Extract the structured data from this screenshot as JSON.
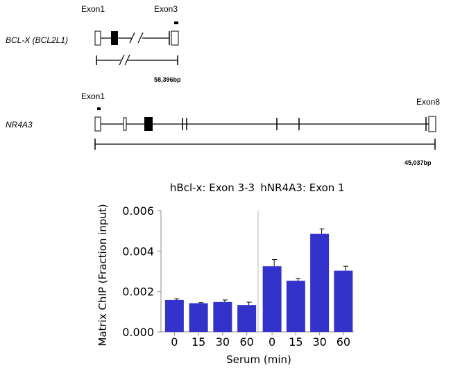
{
  "gene_maps": {
    "bclx": {
      "name": "BCL-X (BCL2L1)",
      "exon_start_label": "Exon1",
      "exon_end_label": "Exon3",
      "length_label": "58,396bp"
    },
    "nr4a3": {
      "name": "NR4A3",
      "exon_start_label": "Exon1",
      "exon_end_label": "Exon8",
      "length_label": "45,037bp"
    }
  },
  "chart_data": {
    "type": "bar",
    "ylabel": "Matrix ChIP (Fraction input)",
    "xlabel": "Serum (min)",
    "ylim": [
      0,
      0.006
    ],
    "yticks": [
      "0.000",
      "0.002",
      "0.004",
      "0.006"
    ],
    "bar_color": "#3333cc",
    "panels": [
      {
        "title": "hBcl-x: Exon 3-3",
        "categories": [
          "0",
          "15",
          "30",
          "60"
        ],
        "values": [
          0.00158,
          0.00142,
          0.00148,
          0.00133
        ],
        "errors": [
          6e-05,
          3e-05,
          0.0001,
          0.00014
        ]
      },
      {
        "title": "hNR4A3: Exon 1",
        "categories": [
          "0",
          "15",
          "30",
          "60"
        ],
        "values": [
          0.00325,
          0.00253,
          0.00485,
          0.00303
        ],
        "errors": [
          0.00033,
          0.00012,
          0.00025,
          0.00022
        ]
      }
    ]
  }
}
